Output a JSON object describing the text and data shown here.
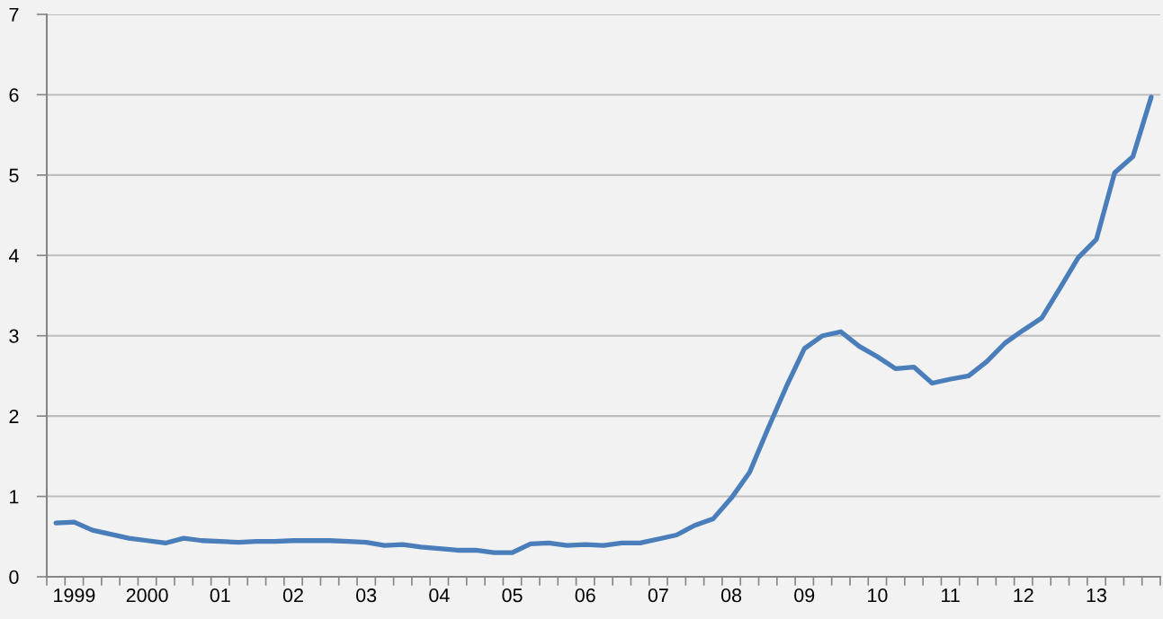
{
  "chart_data": {
    "type": "line",
    "categories": [
      null,
      "1999",
      null,
      null,
      null,
      "2000",
      null,
      null,
      null,
      "01",
      null,
      null,
      null,
      "02",
      null,
      null,
      null,
      "03",
      null,
      null,
      null,
      "04",
      null,
      null,
      null,
      "05",
      null,
      null,
      null,
      "06",
      null,
      null,
      null,
      "07",
      null,
      null,
      null,
      "08",
      null,
      null,
      null,
      "09",
      null,
      null,
      null,
      "10",
      null,
      null,
      null,
      "11",
      null,
      null,
      null,
      "12",
      null,
      null,
      null,
      "13",
      null,
      null,
      null
    ],
    "series": [
      {
        "color": "#4a7ebb",
        "values": [
          0.67,
          0.68,
          0.58,
          0.53,
          0.48,
          0.45,
          0.42,
          0.48,
          0.45,
          0.44,
          0.43,
          0.44,
          0.44,
          0.45,
          0.45,
          0.45,
          0.44,
          0.43,
          0.39,
          0.4,
          0.37,
          0.35,
          0.33,
          0.33,
          0.3,
          0.3,
          0.41,
          0.42,
          0.39,
          0.4,
          0.39,
          0.42,
          0.42,
          0.47,
          0.52,
          0.64,
          0.72,
          0.98,
          1.3,
          1.84,
          2.36,
          2.84,
          3.0,
          3.05,
          2.87,
          2.74,
          2.59,
          2.61,
          2.41,
          2.46,
          2.5,
          2.68,
          2.91,
          3.07,
          3.22,
          3.59,
          3.97,
          4.2,
          5.03,
          5.23,
          5.97
        ]
      }
    ],
    "ylim": [
      0,
      7
    ],
    "yticks": [
      0,
      1,
      2,
      3,
      4,
      5,
      6,
      7
    ],
    "grid": "y",
    "line_style": "solid"
  }
}
